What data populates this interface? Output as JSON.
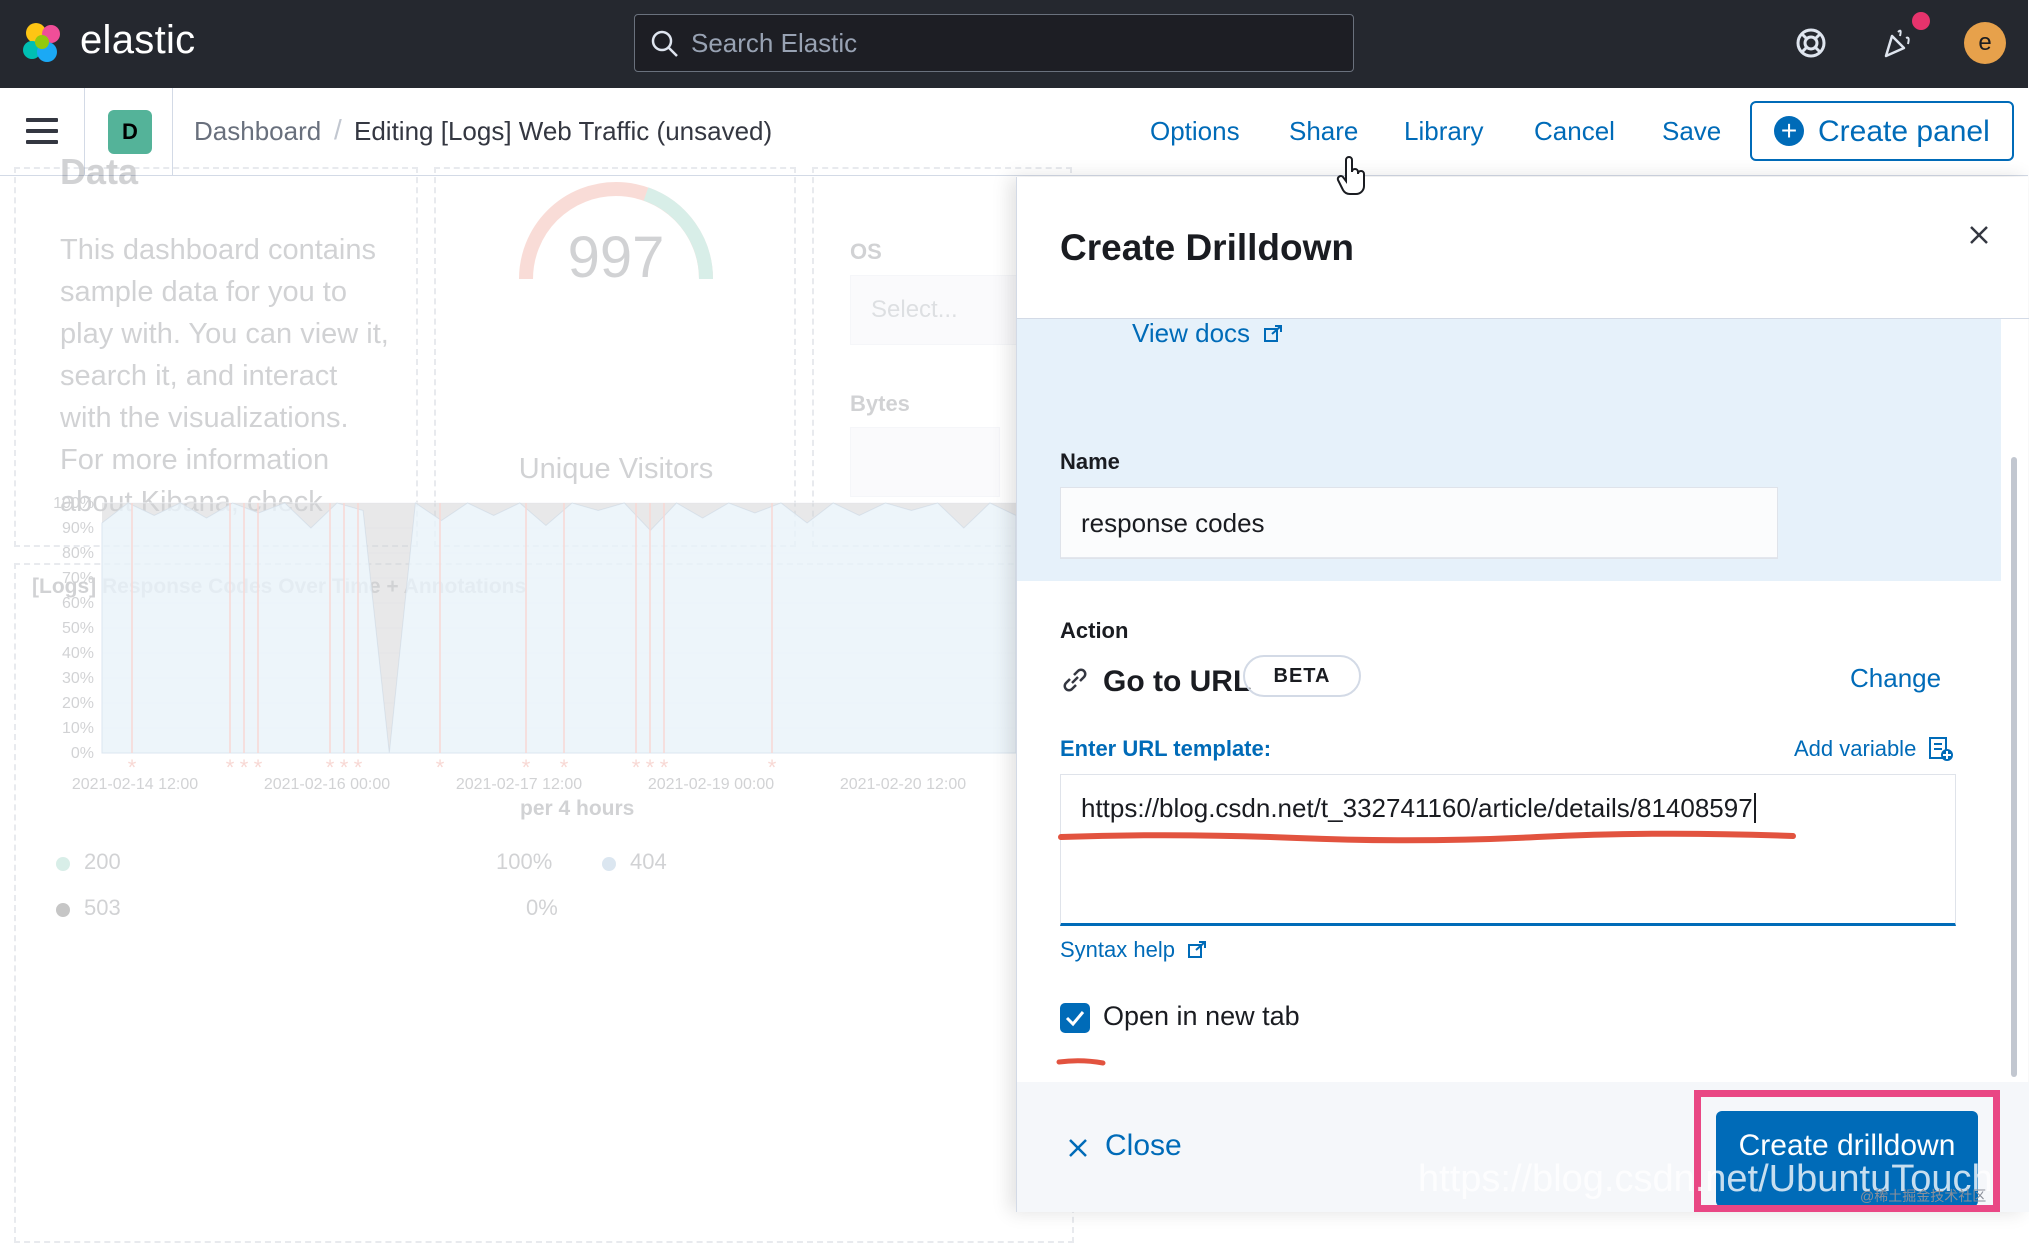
{
  "header": {
    "logo_text": "elastic",
    "search_placeholder": "Search Elastic",
    "avatar_initial": "e"
  },
  "toolbar": {
    "space_initial": "D",
    "breadcrumb_root": "Dashboard",
    "breadcrumb_current": "Editing [Logs] Web Traffic (unsaved)",
    "options_label": "Options",
    "share_label": "Share",
    "library_label": "Library",
    "cancel_label": "Cancel",
    "save_label": "Save",
    "create_panel_label": "Create panel"
  },
  "dashboard": {
    "markdown_title": "Data",
    "markdown_text": "This dashboard contains sample data for you to play with. You can view it, search it, and interact with the visualizations. For more information about Kibana, check",
    "gauge_value": "997",
    "gauge_label": "Unique Visitors",
    "control_os_label": "OS",
    "control_os_placeholder": "Select...",
    "control_bytes_label": "Bytes",
    "chart_title": "[Logs] Response Codes Over Time + Annotations",
    "chart_xlabel": "per 4 hours",
    "legend": [
      {
        "label": "200",
        "value": "100%",
        "color": "#54b399"
      },
      {
        "label": "404",
        "value": "",
        "color": "#6092c0"
      },
      {
        "label": "503",
        "value": "0%",
        "color": "#000000"
      }
    ]
  },
  "chart_data": {
    "type": "area",
    "title": "[Logs] Response Codes Over Time + Annotations",
    "xlabel": "per 4 hours",
    "ylabel": "",
    "y_ticks": [
      "100%",
      "90%",
      "80%",
      "70%",
      "60%",
      "50%",
      "40%",
      "30%",
      "20%",
      "10%",
      "0%"
    ],
    "x_ticks": [
      "2021-02-14 12:00",
      "2021-02-16 00:00",
      "2021-02-17 12:00",
      "2021-02-19 00:00",
      "2021-02-20 12:00"
    ],
    "ylim": [
      0,
      100
    ],
    "series": [
      {
        "name": "200",
        "values": [
          92,
          100,
          95,
          100,
          94,
          100,
          96,
          100,
          90,
          100,
          97,
          0,
          100,
          93,
          100,
          95,
          100,
          91,
          100,
          97,
          100,
          89,
          100,
          94,
          100,
          96,
          100,
          92,
          100,
          95,
          100,
          97,
          100,
          90,
          100,
          95
        ]
      }
    ],
    "grid": true,
    "legend_position": "bottom"
  },
  "flyout": {
    "title": "Create Drilldown",
    "view_docs": "View docs",
    "name_label": "Name",
    "name_value": "response codes",
    "action_label": "Action",
    "action_name": "Go to URL",
    "beta_badge": "BETA",
    "change_label": "Change",
    "url_template_label": "Enter URL template:",
    "add_variable_label": "Add variable",
    "url_value": "https://blog.csdn.net/t_332741160/article/details/81408597",
    "syntax_help": "Syntax help",
    "open_new_tab_label": "Open in new tab",
    "open_new_tab_checked": true,
    "close_label": "Close",
    "create_button_label": "Create drilldown"
  },
  "watermark": {
    "url": "https://blog.csdn.net/UbuntuTouch",
    "small": "@稀土掘金技术社区"
  },
  "colors": {
    "header_bg": "#25282f",
    "link_blue": "#006bb8",
    "annotation_pink": "#e94784",
    "annotation_red": "#e2533f"
  }
}
